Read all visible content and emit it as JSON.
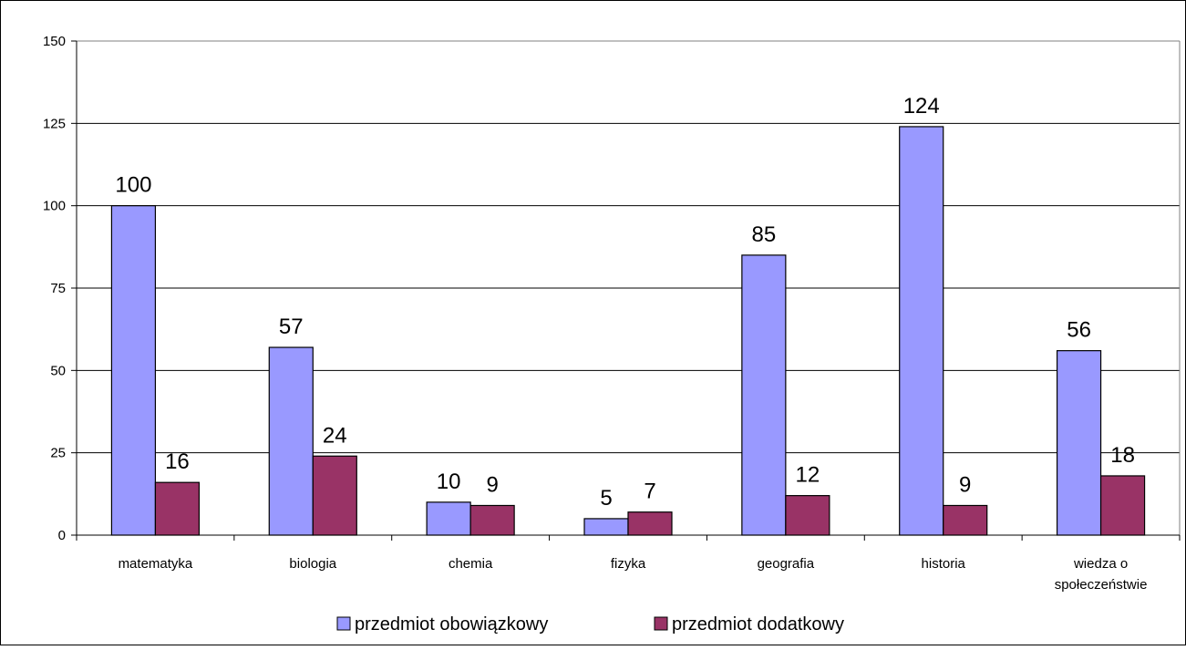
{
  "chart_data": {
    "type": "bar",
    "categories": [
      "matematyka",
      "biologia",
      "chemia",
      "fizyka",
      "geografia",
      "historia",
      "wiedza o społeczeństwie"
    ],
    "category_lines": [
      [
        "matematyka"
      ],
      [
        "biologia"
      ],
      [
        "chemia"
      ],
      [
        "fizyka"
      ],
      [
        "geografia"
      ],
      [
        "historia"
      ],
      [
        "wiedza o",
        "społeczeństwie"
      ]
    ],
    "series": [
      {
        "name": "przedmiot obowiązkowy",
        "values": [
          100,
          57,
          10,
          5,
          85,
          124,
          56
        ],
        "color": "#9999ff"
      },
      {
        "name": "przedmiot dodatkowy",
        "values": [
          16,
          24,
          9,
          7,
          12,
          9,
          18
        ],
        "color": "#993366"
      }
    ],
    "yticks": [
      0,
      25,
      50,
      75,
      100,
      125,
      150
    ],
    "ylim": [
      0,
      150
    ],
    "grid": true,
    "legend": "bottom",
    "plot_background": "#ffffff",
    "title": "",
    "xlabel": "",
    "ylabel": ""
  }
}
